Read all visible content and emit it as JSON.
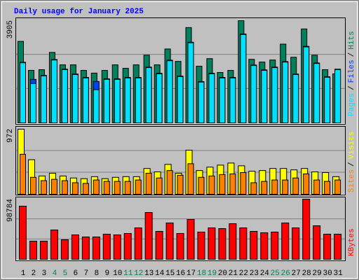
{
  "chart_data": [
    {
      "type": "bar",
      "title": "Daily usage for January 2025",
      "ylim": [
        0,
        3905
      ],
      "yticks": [
        3905
      ],
      "series": [
        {
          "name": "Hits",
          "color": "#00805c",
          "values": [
            3113,
            2005,
            2032,
            2691,
            2216,
            2216,
            2005,
            1900,
            2005,
            2216,
            2084,
            2216,
            2586,
            2216,
            2823,
            2348,
            3641,
            2164,
            2454,
            1926,
            2005,
            3905,
            2427,
            2322,
            2401,
            3008,
            2507,
            3588,
            2586,
            2032,
            1873
          ]
        },
        {
          "name": "Files",
          "color": "#0040ff",
          "values": [
            2315,
            1662,
            1814,
            2421,
            2052,
            1867,
            1735,
            1583,
            1682,
            1682,
            1735,
            1735,
            2131,
            1893,
            2395,
            1788,
            3081,
            1577,
            1893,
            1735,
            1735,
            3397,
            2210,
            2025,
            2131,
            2342,
            1867,
            2922,
            2289,
            1761,
            2052
          ]
        },
        {
          "name": "Pages",
          "color": "#00e0ff",
          "values": [
            2295,
            1504,
            1794,
            2401,
            2032,
            1847,
            1715,
            1266,
            1662,
            1662,
            1715,
            1715,
            2111,
            1873,
            2375,
            1768,
            3061,
            1557,
            1873,
            1715,
            1715,
            3377,
            2190,
            2005,
            2111,
            2322,
            1847,
            2902,
            2269,
            1741,
            2032
          ]
        }
      ]
    },
    {
      "type": "bar",
      "ylim": [
        0,
        972
      ],
      "yticks": [
        972
      ],
      "series": [
        {
          "name": "Visits",
          "color": "#ffff00",
          "values": [
            972,
            516,
            273,
            314,
            273,
            243,
            233,
            263,
            233,
            253,
            263,
            263,
            385,
            334,
            446,
            314,
            658,
            354,
            405,
            435,
            466,
            425,
            344,
            354,
            385,
            385,
            364,
            385,
            334,
            324,
            263
          ]
        },
        {
          "name": "Sites",
          "color": "#ff8000",
          "values": [
            597,
            253,
            203,
            223,
            203,
            172,
            162,
            213,
            192,
            192,
            192,
            213,
            314,
            243,
            354,
            284,
            456,
            253,
            273,
            294,
            304,
            324,
            172,
            192,
            213,
            213,
            243,
            304,
            213,
            192,
            213
          ]
        }
      ]
    },
    {
      "type": "bar",
      "ylim": [
        0,
        98784
      ],
      "yticks": [
        98784
      ],
      "categories": [
        "1",
        "2",
        "3",
        "4",
        "5",
        "6",
        "7",
        "8",
        "9",
        "10",
        "11",
        "12",
        "13",
        "14",
        "15",
        "16",
        "17",
        "18",
        "19",
        "20",
        "21",
        "22",
        "23",
        "24",
        "25",
        "26",
        "27",
        "28",
        "29",
        "30",
        "31"
      ],
      "category_colors": [
        "#000000",
        "#000000",
        "#000000",
        "#00805c",
        "#00805c",
        "#000000",
        "#000000",
        "#000000",
        "#000000",
        "#000000",
        "#00805c",
        "#00805c",
        "#000000",
        "#000000",
        "#000000",
        "#000000",
        "#000000",
        "#00805c",
        "#00805c",
        "#000000",
        "#000000",
        "#000000",
        "#000000",
        "#000000",
        "#00805c",
        "#00805c",
        "#000000",
        "#000000",
        "#000000",
        "#000000",
        "#000000"
      ],
      "series": [
        {
          "name": "KBytes",
          "color": "#ff0000",
          "values": [
            87300,
            29865,
            29865,
            48243,
            32162,
            40203,
            36757,
            36757,
            41351,
            40203,
            42500,
            51689,
            76960,
            45946,
            59730,
            42500,
            65473,
            44797,
            51689,
            50540,
            58581,
            51689,
            45946,
            43648,
            44797,
            59730,
            51689,
            98784,
            55135,
            41351,
            41351
          ]
        }
      ]
    }
  ],
  "legend_separator": "/"
}
